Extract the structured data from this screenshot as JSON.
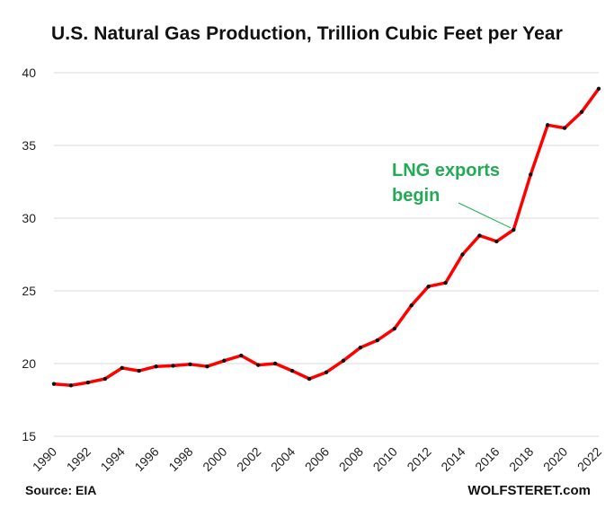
{
  "chart_data": {
    "type": "line",
    "title": "U.S. Natural Gas Production,  Trillion Cubic Feet per Year",
    "xlabel": "",
    "ylabel": "",
    "x": [
      1990,
      1991,
      1992,
      1993,
      1994,
      1995,
      1996,
      1997,
      1998,
      1999,
      2000,
      2001,
      2002,
      2003,
      2004,
      2005,
      2006,
      2007,
      2008,
      2009,
      2010,
      2011,
      2012,
      2013,
      2014,
      2015,
      2016,
      2017,
      2018,
      2019,
      2020,
      2021,
      2022
    ],
    "series": [
      {
        "name": "U.S. Natural Gas Production",
        "values": [
          18.6,
          18.5,
          18.7,
          18.95,
          19.7,
          19.5,
          19.8,
          19.85,
          19.95,
          19.8,
          20.2,
          20.55,
          19.9,
          20.0,
          19.5,
          18.95,
          19.4,
          20.2,
          21.1,
          21.6,
          22.4,
          24.0,
          25.3,
          25.55,
          27.5,
          28.8,
          28.4,
          29.2,
          33.0,
          36.4,
          36.2,
          37.3,
          38.9
        ],
        "color": "#ff0000"
      }
    ],
    "xticks": [
      "1990",
      "1992",
      "1994",
      "1996",
      "1998",
      "2000",
      "2002",
      "2004",
      "2006",
      "2008",
      "2010",
      "2012",
      "2014",
      "2016",
      "2018",
      "2020",
      "2022"
    ],
    "yticks": [
      "15",
      "20",
      "25",
      "30",
      "35",
      "40"
    ],
    "xlim": [
      1990,
      2022
    ],
    "ylim": [
      15,
      40
    ],
    "grid": "horizontal",
    "annotations": [
      {
        "lines": [
          "LNG exports",
          "begin"
        ],
        "points_to": {
          "x": 2017,
          "y": 29.2
        },
        "color": "#22aa55"
      }
    ]
  },
  "footer": {
    "source": "Source: EIA",
    "watermark": "WOLFSTERET.com"
  }
}
